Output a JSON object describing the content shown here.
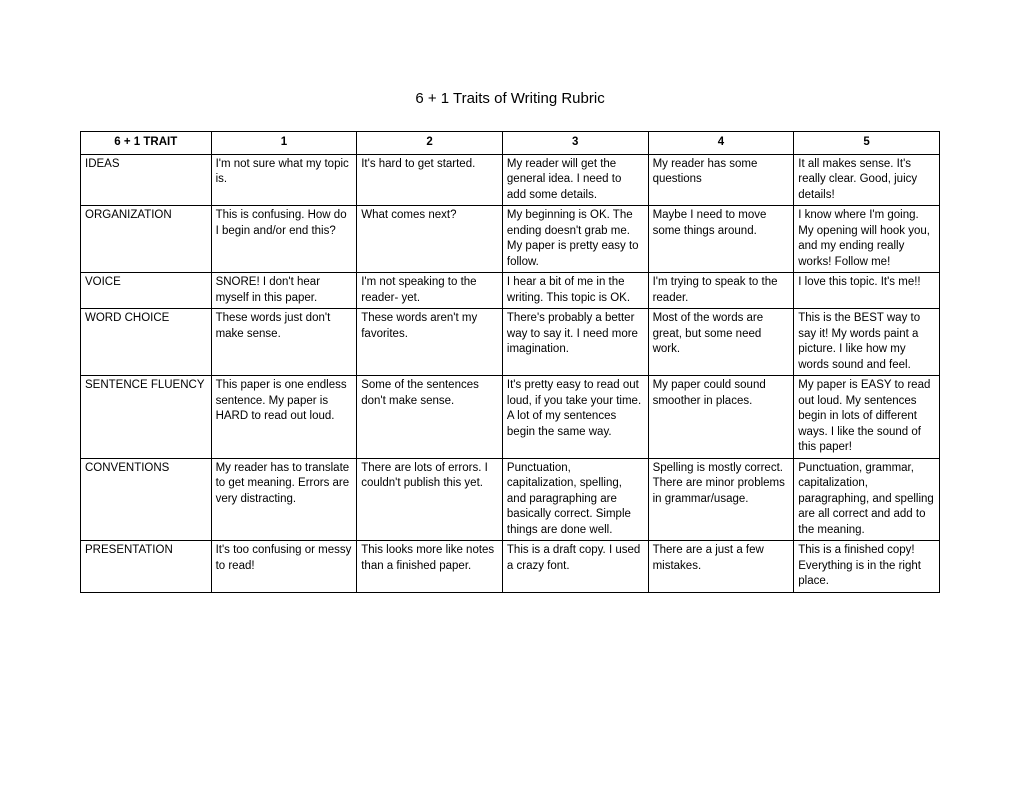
{
  "title": "6 + 1 Traits of Writing Rubric",
  "table": {
    "headers": [
      "6 + 1 TRAIT",
      "1",
      "2",
      "3",
      "4",
      "5"
    ],
    "rows": [
      {
        "trait": "IDEAS",
        "cells": [
          "I'm not sure what my topic is.",
          "It's hard to get started.",
          "My reader will get the general idea. I need to add some details.",
          "My reader has some questions",
          "It all makes sense. It's really clear. Good, juicy details!"
        ]
      },
      {
        "trait": "ORGANIZATION",
        "cells": [
          "This is confusing. How do I begin and/or end this?",
          "What comes next?",
          "My beginning is OK. The ending doesn't grab me. My paper is pretty easy to follow.",
          "Maybe I need to move some things around.",
          "I know where I'm going. My opening will hook you, and my ending really works! Follow me!"
        ]
      },
      {
        "trait": "VOICE",
        "cells": [
          "SNORE! I don't hear myself in this paper.",
          "I'm not speaking to the reader- yet.",
          "I hear a bit of me in the writing. This topic is OK.",
          "I'm trying to speak to the reader.",
          "I love this topic. It's me!!"
        ]
      },
      {
        "trait": "WORD CHOICE",
        "cells": [
          "These words just don't make sense.",
          "These words aren't my favorites.",
          "There's probably a better way to say it. I need more imagination.",
          "Most of the words are great, but some need work.",
          "This is the BEST way to say it! My words paint a picture. I like how my words sound and feel."
        ]
      },
      {
        "trait": "SENTENCE FLUENCY",
        "cells": [
          "This paper is one endless sentence. My paper is HARD to read out loud.",
          "Some of the sentences don't make sense.",
          "It's pretty easy to read out loud, if you take your time. A lot of my sentences begin the same way.",
          "My paper could sound smoother in places.",
          "My paper is EASY to read out loud. My sentences begin in lots of different ways. I like the sound of this paper!"
        ]
      },
      {
        "trait": "CONVENTIONS",
        "cells": [
          "My reader has to translate to get meaning. Errors are very distracting.",
          "There are lots of errors. I couldn't publish this yet.",
          "Punctuation, capitalization, spelling, and paragraphing are basically correct. Simple things are done well.",
          "Spelling is mostly correct. There are minor problems in grammar/usage.",
          "Punctuation, grammar, capitalization, paragraphing, and spelling are all correct and add to the meaning."
        ]
      },
      {
        "trait": "PRESENTATION",
        "cells": [
          "It's too confusing or messy to read!",
          "This looks more like notes than a finished paper.",
          "This is a draft copy. I used a crazy font.",
          "There are a just a few mistakes.",
          "This is a finished copy! Everything is in the right place."
        ]
      }
    ]
  }
}
